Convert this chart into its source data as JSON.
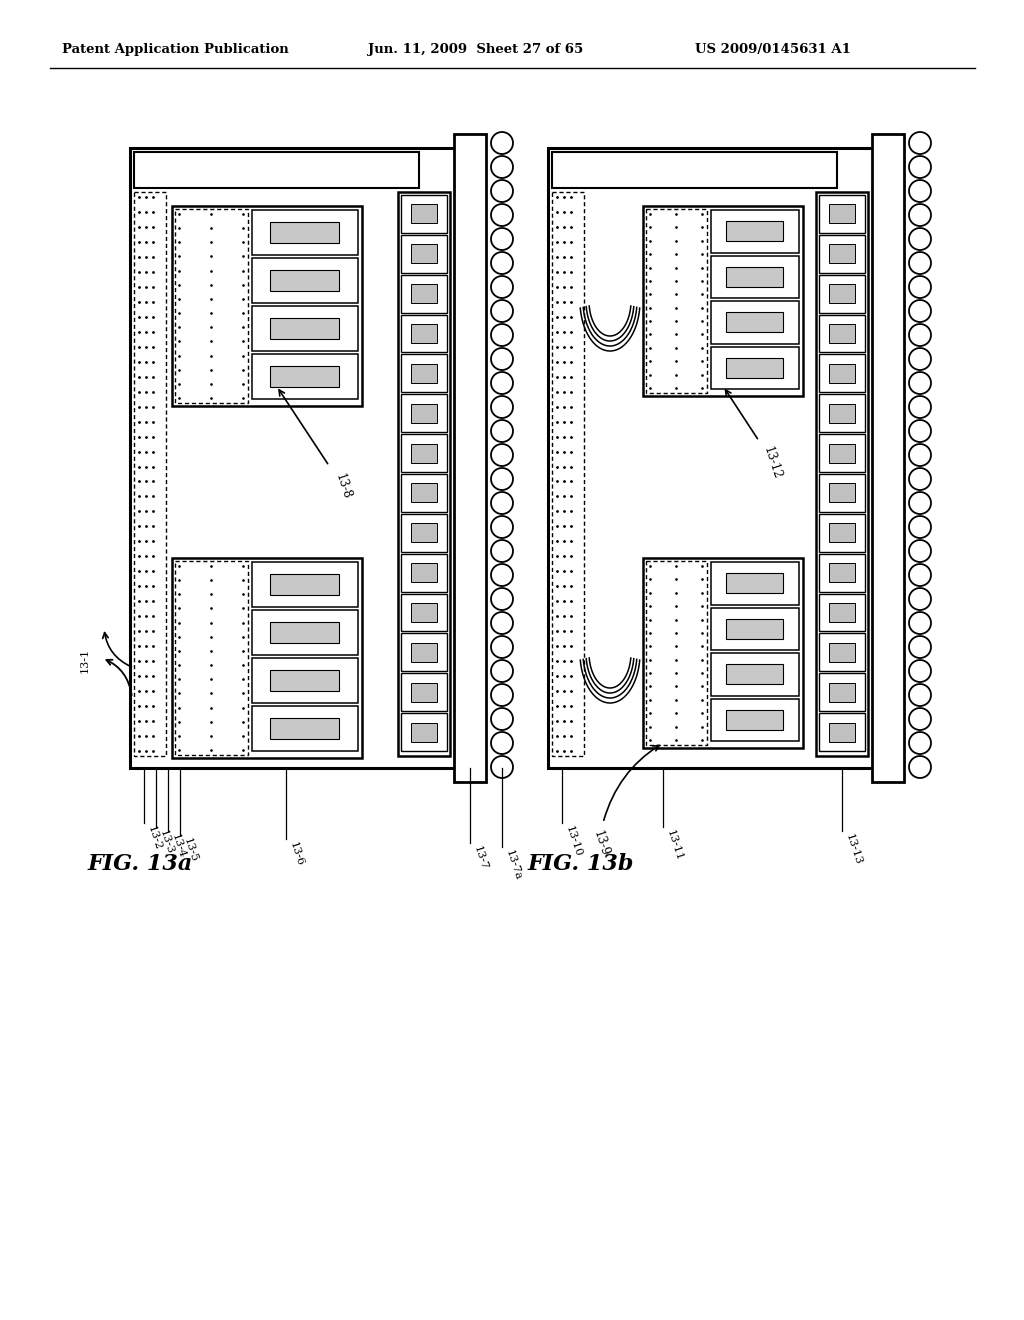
{
  "bg_color": "#ffffff",
  "header_left": "Patent Application Publication",
  "header_mid": "Jun. 11, 2009  Sheet 27 of 65",
  "header_right": "US 2009/0145631 A1",
  "fig_a_label": "FIG. 13a",
  "fig_b_label": "FIG. 13b",
  "ref_13_1": "13-1",
  "ref_13_2": "13-2",
  "ref_13_3": "13-3",
  "ref_13_4": "13-4",
  "ref_13_5": "13-5",
  "ref_13_6": "13-6",
  "ref_13_7": "13-7",
  "ref_13_7a": "13-7a",
  "ref_13_8": "13-8",
  "ref_13_9": "13-9",
  "ref_13_10": "13-10",
  "ref_13_11": "13-11",
  "ref_13_12": "13-12",
  "ref_13_13": "13-13"
}
